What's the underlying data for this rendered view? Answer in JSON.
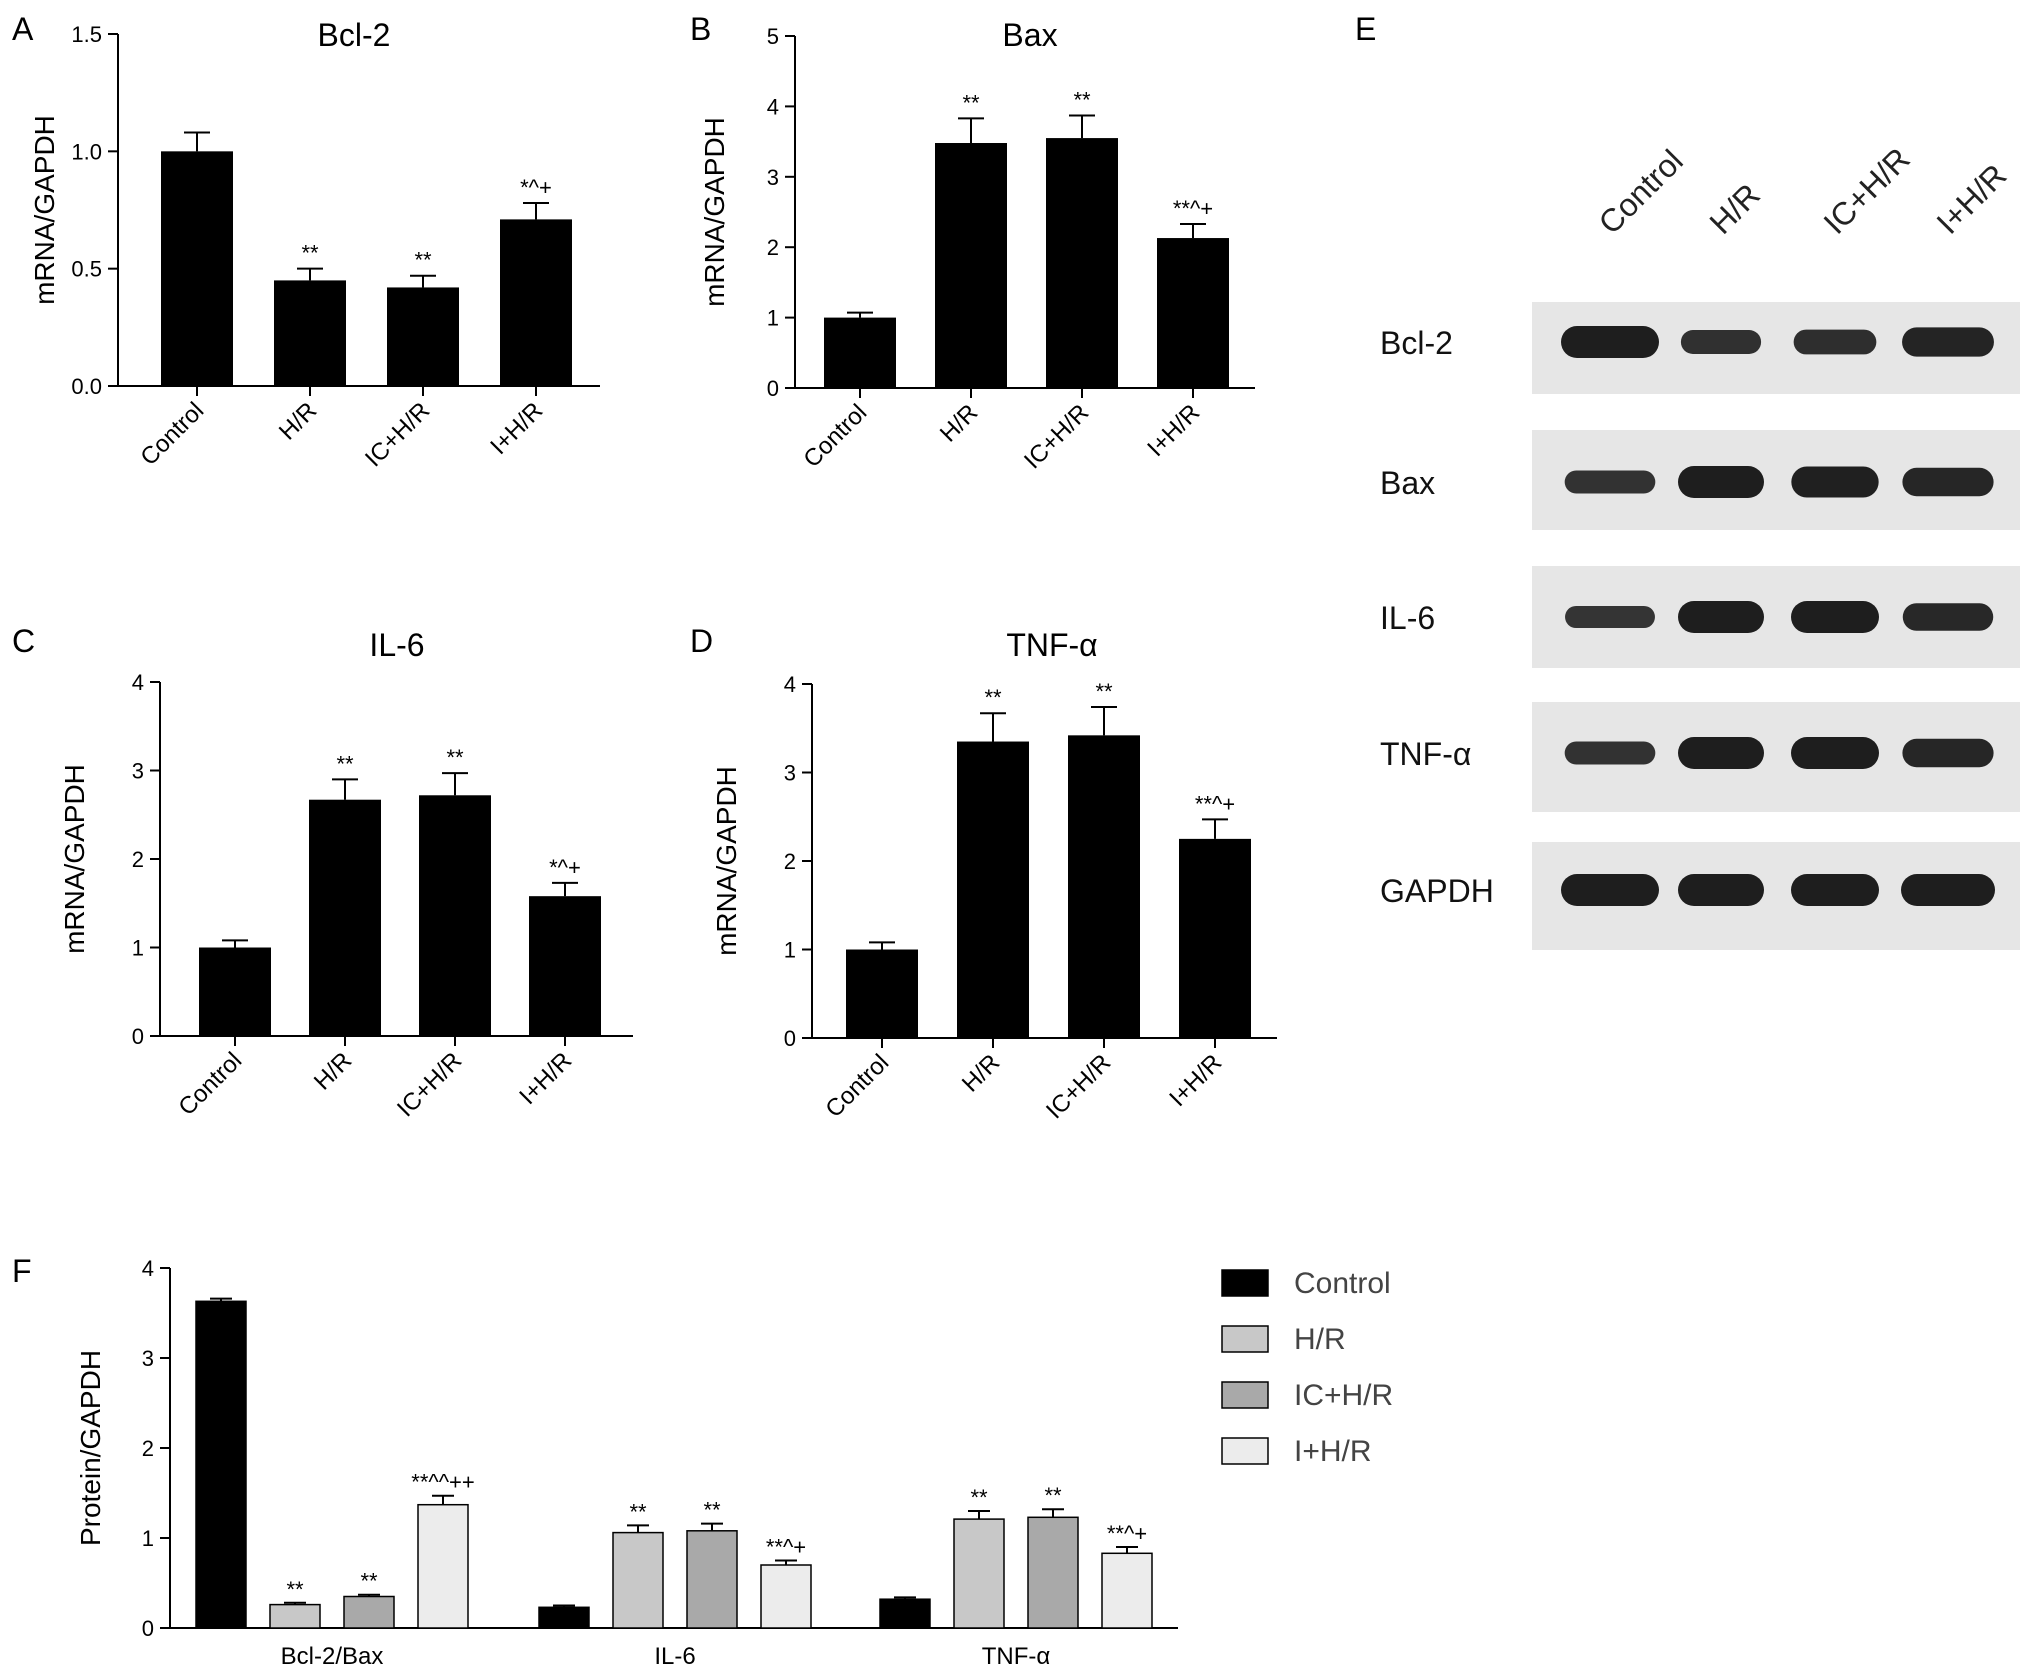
{
  "panel_letters": [
    "A",
    "B",
    "C",
    "D",
    "E",
    "F"
  ],
  "chart_data": [
    {
      "type": "bar",
      "panel": "A",
      "title": "Bcl-2",
      "ylabel": "mRNA/GAPDH",
      "ylim": [
        0,
        1.5
      ],
      "yticks": [
        "0.0",
        "0.5",
        "1.0",
        "1.5"
      ],
      "categories": [
        "Control",
        "H/R",
        "IC+H/R",
        "I+H/R"
      ],
      "values": [
        1.0,
        0.45,
        0.42,
        0.71
      ],
      "errors": [
        0.08,
        0.05,
        0.05,
        0.07
      ],
      "annotations": [
        "",
        "**",
        "**",
        "*^+"
      ]
    },
    {
      "type": "bar",
      "panel": "B",
      "title": "Bax",
      "ylabel": "mRNA/GAPDH",
      "ylim": [
        0,
        5
      ],
      "yticks": [
        "0",
        "1",
        "2",
        "3",
        "4",
        "5"
      ],
      "categories": [
        "Control",
        "H/R",
        "IC+H/R",
        "I+H/R"
      ],
      "values": [
        1.0,
        3.48,
        3.55,
        2.13
      ],
      "errors": [
        0.07,
        0.35,
        0.32,
        0.2
      ],
      "annotations": [
        "",
        "**",
        "**",
        "**^+"
      ]
    },
    {
      "type": "bar",
      "panel": "C",
      "title": "IL-6",
      "ylabel": "mRNA/GAPDH",
      "ylim": [
        0,
        4
      ],
      "yticks": [
        "0",
        "1",
        "2",
        "3",
        "4"
      ],
      "categories": [
        "Control",
        "H/R",
        "IC+H/R",
        "I+H/R"
      ],
      "values": [
        1.0,
        2.67,
        2.72,
        1.58
      ],
      "errors": [
        0.08,
        0.23,
        0.25,
        0.15
      ],
      "annotations": [
        "",
        "**",
        "**",
        "*^+"
      ]
    },
    {
      "type": "bar",
      "panel": "D",
      "title": "TNF-α",
      "ylabel": "mRNA/GAPDH",
      "ylim": [
        0,
        4
      ],
      "yticks": [
        "0",
        "1",
        "2",
        "3",
        "4"
      ],
      "categories": [
        "Control",
        "H/R",
        "IC+H/R",
        "I+H/R"
      ],
      "values": [
        1.0,
        3.35,
        3.42,
        2.25
      ],
      "errors": [
        0.08,
        0.32,
        0.32,
        0.22
      ],
      "annotations": [
        "",
        "**",
        "**",
        "**^+"
      ]
    },
    {
      "type": "bar",
      "panel": "F",
      "ylabel": "Protein/GAPDH",
      "ylim": [
        0,
        4
      ],
      "yticks": [
        "0",
        "1",
        "2",
        "3",
        "4"
      ],
      "categories": [
        "Bcl-2/Bax",
        "IL-6",
        "TNF-α"
      ],
      "legend_position": "right",
      "series": [
        {
          "name": "Control",
          "color": "#000000",
          "values": [
            3.63,
            0.23,
            0.32
          ],
          "errors": [
            0.03,
            0.02,
            0.02
          ],
          "annotations": [
            "",
            "",
            ""
          ]
        },
        {
          "name": "H/R",
          "color": "#c8c8c8",
          "values": [
            0.26,
            1.06,
            1.21
          ],
          "errors": [
            0.02,
            0.08,
            0.09
          ],
          "annotations": [
            "**",
            "**",
            "**"
          ]
        },
        {
          "name": "IC+H/R",
          "color": "#a9a9a9",
          "values": [
            0.35,
            1.08,
            1.23
          ],
          "errors": [
            0.02,
            0.08,
            0.09
          ],
          "annotations": [
            "**",
            "**",
            "**"
          ]
        },
        {
          "name": "I+H/R",
          "color": "#ececec",
          "values": [
            1.37,
            0.7,
            0.83
          ],
          "errors": [
            0.1,
            0.05,
            0.07
          ],
          "annotations": [
            "**^^++",
            "**^+",
            "**^+"
          ]
        }
      ]
    }
  ],
  "western_blot": {
    "panel": "E",
    "lanes": [
      "Control",
      "H/R",
      "IC+H/R",
      "I+H/R"
    ],
    "bands": [
      {
        "label": "Bcl-2",
        "intensity": [
          1.0,
          0.55,
          0.6,
          0.85
        ]
      },
      {
        "label": "Bax",
        "intensity": [
          0.5,
          1.0,
          0.95,
          0.8
        ]
      },
      {
        "label": "IL-6",
        "intensity": [
          0.45,
          1.0,
          1.0,
          0.75
        ]
      },
      {
        "label": "TNF-α",
        "intensity": [
          0.5,
          1.0,
          1.0,
          0.8
        ]
      },
      {
        "label": "GAPDH",
        "intensity": [
          1.0,
          1.0,
          1.0,
          1.0
        ]
      }
    ]
  }
}
